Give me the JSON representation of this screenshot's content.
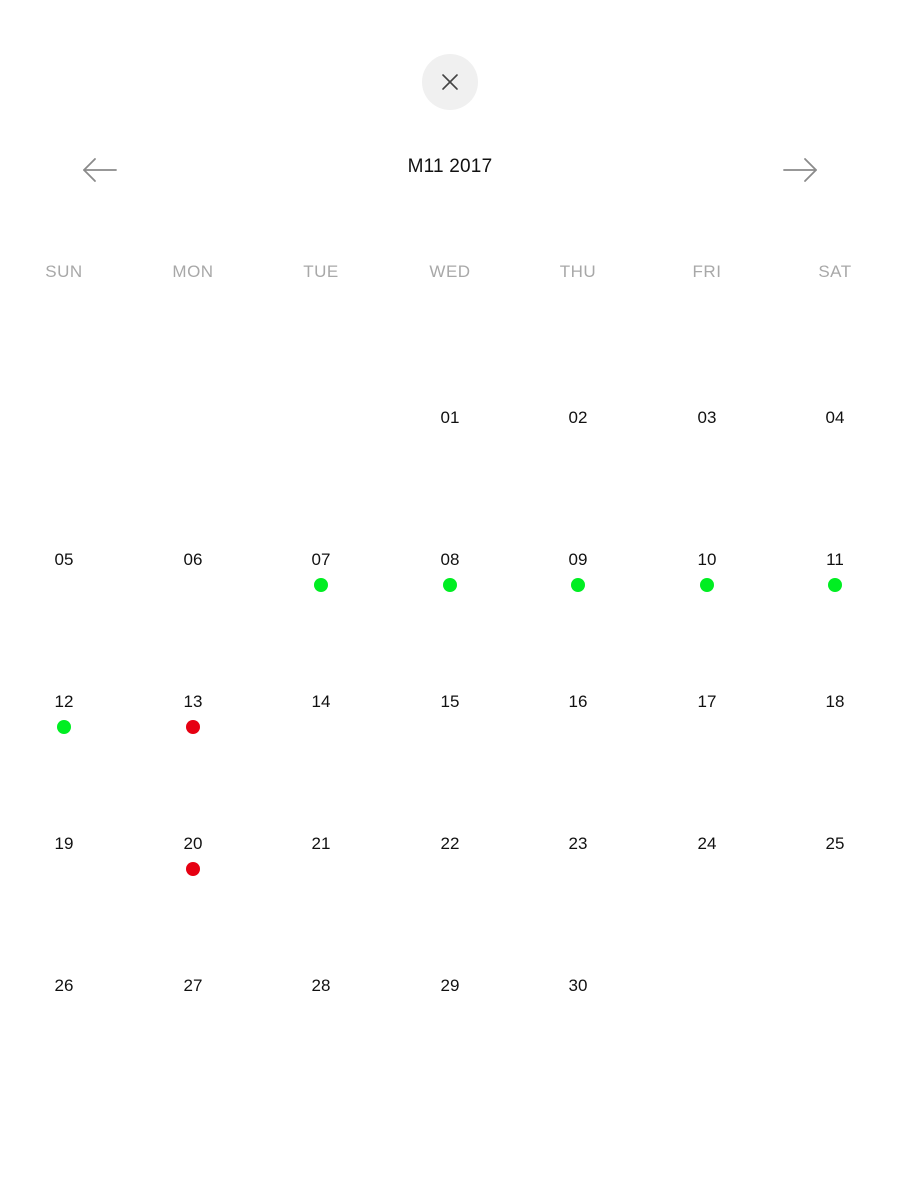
{
  "header": {
    "month_title": "M11 2017"
  },
  "weekdays": [
    "SUN",
    "MON",
    "TUE",
    "WED",
    "THU",
    "FRI",
    "SAT"
  ],
  "colors": {
    "green": "#00ee22",
    "red": "#e60012"
  },
  "weeks": [
    [
      {
        "day": "",
        "dot": null
      },
      {
        "day": "",
        "dot": null
      },
      {
        "day": "",
        "dot": null
      },
      {
        "day": "01",
        "dot": null
      },
      {
        "day": "02",
        "dot": null
      },
      {
        "day": "03",
        "dot": null
      },
      {
        "day": "04",
        "dot": null
      }
    ],
    [
      {
        "day": "05",
        "dot": null
      },
      {
        "day": "06",
        "dot": null
      },
      {
        "day": "07",
        "dot": "green"
      },
      {
        "day": "08",
        "dot": "green"
      },
      {
        "day": "09",
        "dot": "green"
      },
      {
        "day": "10",
        "dot": "green"
      },
      {
        "day": "11",
        "dot": "green"
      }
    ],
    [
      {
        "day": "12",
        "dot": "green"
      },
      {
        "day": "13",
        "dot": "red"
      },
      {
        "day": "14",
        "dot": null
      },
      {
        "day": "15",
        "dot": null
      },
      {
        "day": "16",
        "dot": null
      },
      {
        "day": "17",
        "dot": null
      },
      {
        "day": "18",
        "dot": null
      }
    ],
    [
      {
        "day": "19",
        "dot": null
      },
      {
        "day": "20",
        "dot": "red"
      },
      {
        "day": "21",
        "dot": null
      },
      {
        "day": "22",
        "dot": null
      },
      {
        "day": "23",
        "dot": null
      },
      {
        "day": "24",
        "dot": null
      },
      {
        "day": "25",
        "dot": null
      }
    ],
    [
      {
        "day": "26",
        "dot": null
      },
      {
        "day": "27",
        "dot": null
      },
      {
        "day": "28",
        "dot": null
      },
      {
        "day": "29",
        "dot": null
      },
      {
        "day": "30",
        "dot": null
      },
      {
        "day": "",
        "dot": null
      },
      {
        "day": "",
        "dot": null
      }
    ]
  ]
}
